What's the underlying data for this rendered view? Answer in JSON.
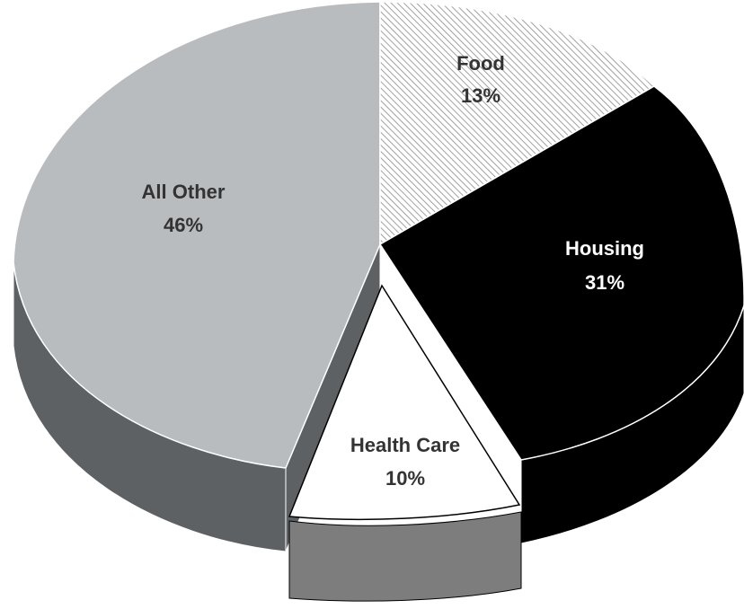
{
  "chart_data": {
    "type": "pie",
    "style": "3d-exploded",
    "title": "",
    "slices": [
      {
        "name": "Food",
        "label": "Food",
        "value": 13,
        "value_label": "13%",
        "color": "#e8e8e8",
        "pattern": "diagonal-hatch",
        "text_color": "#333333",
        "exploded": false
      },
      {
        "name": "Housing",
        "label": "Housing",
        "value": 31,
        "value_label": "31%",
        "color": "#000000",
        "side_color": "#000000",
        "text_color": "#ffffff",
        "exploded": false
      },
      {
        "name": "Health Care",
        "label": "Health Care",
        "value": 10,
        "value_label": "10%",
        "color": "#ffffff",
        "side_color": "#7d7d7d",
        "text_color": "#333333",
        "exploded": true
      },
      {
        "name": "All Other",
        "label": "All Other",
        "value": 46,
        "value_label": "46%",
        "color": "#b8bcbf",
        "side_color": "#5e6163",
        "text_color": "#333333",
        "exploded": false
      }
    ]
  }
}
